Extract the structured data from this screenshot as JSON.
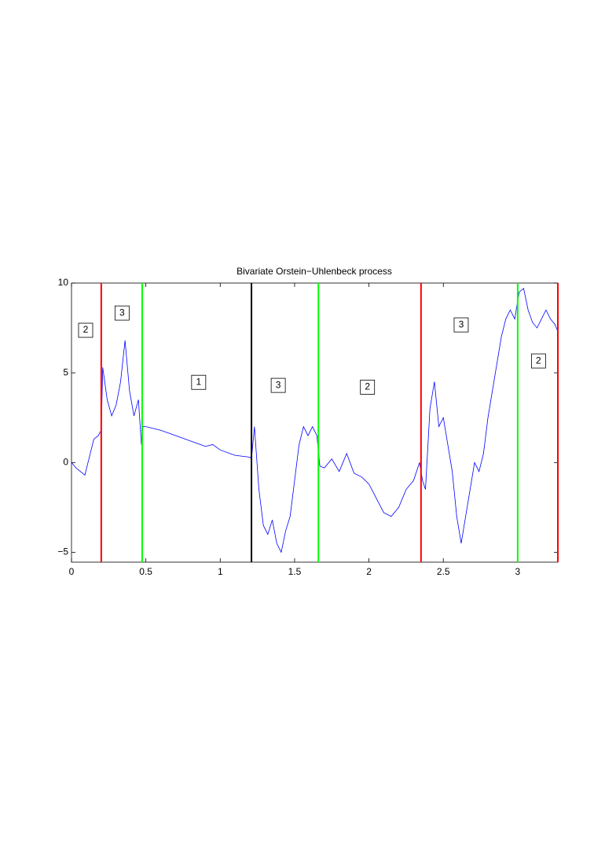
{
  "chart_data": {
    "type": "line",
    "title": "Bivariate Orstein−Uhlenbeck process",
    "x": [
      0,
      0.03,
      0.06,
      0.09,
      0.12,
      0.15,
      0.18,
      0.2,
      0.21,
      0.24,
      0.27,
      0.3,
      0.33,
      0.36,
      0.39,
      0.42,
      0.45,
      0.47,
      0.48,
      0.5,
      0.6,
      0.7,
      0.8,
      0.9,
      0.95,
      1.0,
      1.1,
      1.2,
      1.21,
      1.23,
      1.26,
      1.29,
      1.32,
      1.35,
      1.38,
      1.41,
      1.44,
      1.47,
      1.5,
      1.53,
      1.56,
      1.59,
      1.62,
      1.65,
      1.67,
      1.7,
      1.75,
      1.8,
      1.85,
      1.9,
      1.95,
      2.0,
      2.05,
      2.1,
      2.15,
      2.2,
      2.25,
      2.3,
      2.34,
      2.36,
      2.38,
      2.41,
      2.44,
      2.47,
      2.5,
      2.53,
      2.56,
      2.59,
      2.62,
      2.65,
      2.68,
      2.71,
      2.74,
      2.77,
      2.8,
      2.83,
      2.86,
      2.89,
      2.92,
      2.95,
      2.98,
      3.01,
      3.04,
      3.07,
      3.1,
      3.13,
      3.16,
      3.19,
      3.22,
      3.25,
      3.27
    ],
    "series": [
      {
        "color": "#0000ff",
        "values": [
          0,
          -0.3,
          -0.5,
          -0.7,
          0.3,
          1.3,
          1.5,
          1.8,
          5.3,
          3.5,
          2.6,
          3.2,
          4.5,
          6.8,
          4.0,
          2.6,
          3.5,
          1.0,
          2.0,
          2.0,
          1.8,
          1.5,
          1.2,
          0.9,
          1.0,
          0.7,
          0.4,
          0.3,
          0.2,
          2.0,
          -1.5,
          -3.5,
          -4.0,
          -3.2,
          -4.5,
          -5.0,
          -3.8,
          -3.0,
          -1.0,
          1.0,
          2.0,
          1.5,
          2.0,
          1.5,
          -0.2,
          -0.3,
          0.2,
          -0.5,
          0.5,
          -0.6,
          -0.8,
          -1.2,
          -2.0,
          -2.8,
          -3.0,
          -2.5,
          -1.5,
          -1.0,
          0.0,
          -1.0,
          -1.5,
          3.0,
          4.5,
          2.0,
          2.5,
          1.0,
          -0.5,
          -3.0,
          -4.5,
          -3.0,
          -1.5,
          0.0,
          -0.5,
          0.5,
          2.5,
          4.0,
          5.5,
          7.0,
          8.0,
          8.5,
          8.0,
          9.5,
          9.7,
          8.5,
          7.8,
          7.5,
          8.0,
          8.5,
          8.0,
          7.7,
          7.3
        ]
      }
    ],
    "xlim": [
      0,
      3.27
    ],
    "ylim": [
      -5.55,
      10
    ],
    "xticks": [
      0,
      0.5,
      1,
      1.5,
      2,
      2.5,
      3
    ],
    "yticks": [
      {
        "value": -5,
        "label": "−5"
      },
      0,
      5,
      10
    ],
    "vlines": [
      {
        "x": 0.2,
        "color": "#ff0000"
      },
      {
        "x": 0.475,
        "color": "#00ff00"
      },
      {
        "x": 1.21,
        "color": "#000000"
      },
      {
        "x": 1.66,
        "color": "#00ff00"
      },
      {
        "x": 2.35,
        "color": "#ff0000"
      },
      {
        "x": 3.0,
        "color": "#00ff00"
      },
      {
        "x": 3.27,
        "color": "#ff0000"
      }
    ],
    "annotations": [
      {
        "text": "2",
        "x": 0.095,
        "y": 7.37
      },
      {
        "text": "3",
        "x": 0.34,
        "y": 8.33
      },
      {
        "text": "1",
        "x": 0.855,
        "y": 4.47
      },
      {
        "text": "3",
        "x": 1.39,
        "y": 4.3
      },
      {
        "text": "2",
        "x": 1.99,
        "y": 4.2
      },
      {
        "text": "3",
        "x": 2.62,
        "y": 7.67
      },
      {
        "text": "2",
        "x": 3.14,
        "y": 5.66
      }
    ]
  }
}
